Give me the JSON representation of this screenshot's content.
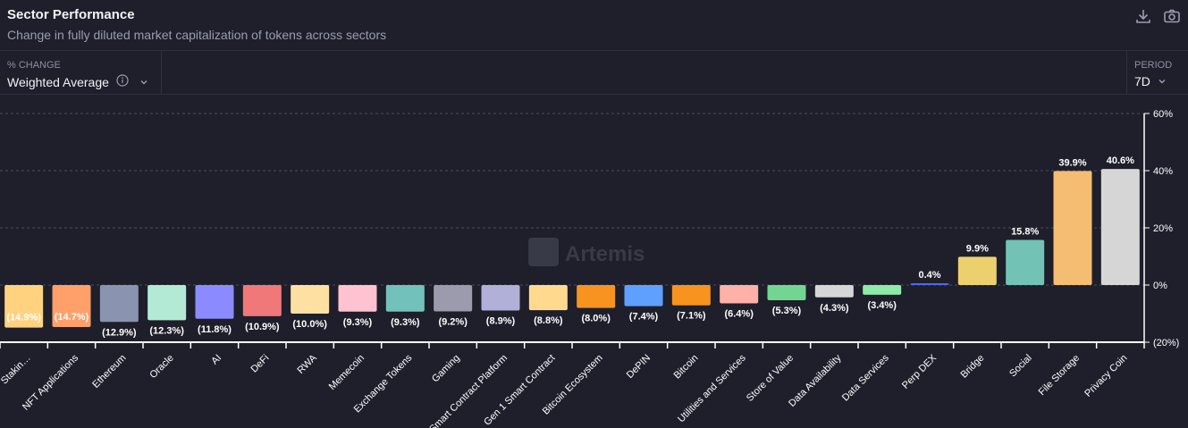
{
  "header": {
    "title": "Sector Performance",
    "subtitle": "Change in fully diluted market capitalization of tokens across sectors"
  },
  "toolbar": {
    "download_icon": "download-icon",
    "camera_icon": "camera-icon"
  },
  "controls": {
    "metric": {
      "label": "% CHANGE",
      "value": "Weighted Average"
    },
    "period": {
      "label": "PERIOD",
      "value": "7D"
    }
  },
  "watermark": "Artemis",
  "chart_data": {
    "type": "bar",
    "title": "",
    "xlabel": "",
    "ylabel": "",
    "ylim": [
      -20,
      60
    ],
    "yticks": [
      60,
      40,
      20,
      0,
      -20
    ],
    "ytick_labels": [
      "60%",
      "40%",
      "20%",
      "0%",
      "(20%)"
    ],
    "grid": true,
    "axis_position": "right",
    "categories": [
      "Stakin…",
      "NFT Applications",
      "Ethereum",
      "Oracle",
      "AI",
      "DeFi",
      "RWA",
      "Memecoin",
      "Exchange Tokens",
      "Gaming",
      "Smart Contract Platform",
      "Gen 1 Smart Contract",
      "Bitcoin Ecosystem",
      "DePIN",
      "Bitcoin",
      "Utilities and Services",
      "Store of Value",
      "Data Availability",
      "Data Services",
      "Perp DEX",
      "Bridge",
      "Social",
      "File Storage",
      "Privacy Coin"
    ],
    "values": [
      -14.9,
      -14.7,
      -12.9,
      -12.3,
      -11.8,
      -10.9,
      -10.0,
      -9.3,
      -9.3,
      -9.2,
      -8.9,
      -8.8,
      -8.0,
      -7.4,
      -7.1,
      -6.4,
      -5.3,
      -4.3,
      -3.4,
      0.4,
      9.9,
      15.8,
      39.9,
      40.6
    ],
    "data_labels": [
      "(14.9%)",
      "(14.7%)",
      "(12.9%)",
      "(12.3%)",
      "(11.8%)",
      "(10.9%)",
      "(10.0%)",
      "(9.3%)",
      "(9.3%)",
      "(9.2%)",
      "(8.9%)",
      "(8.8%)",
      "(8.0%)",
      "(7.4%)",
      "(7.1%)",
      "(6.4%)",
      "(5.3%)",
      "(4.3%)",
      "(3.4%)",
      "0.4%",
      "9.9%",
      "15.8%",
      "39.9%",
      "40.6%"
    ],
    "colors": [
      "#ffd27f",
      "#ff9f6a",
      "#8a93b0",
      "#b3ead6",
      "#8b8bff",
      "#f07878",
      "#ffe0a3",
      "#ffc2d1",
      "#72c2bb",
      "#9b9bad",
      "#b0b0d8",
      "#ffda8e",
      "#f7931e",
      "#5fa0ff",
      "#f7931e",
      "#ffb0a8",
      "#72d690",
      "#d6d6d6",
      "#8eeaa8",
      "#4f6ae8",
      "#ecd06e",
      "#72c2b5",
      "#f5bd72",
      "#d6d6d6"
    ]
  }
}
